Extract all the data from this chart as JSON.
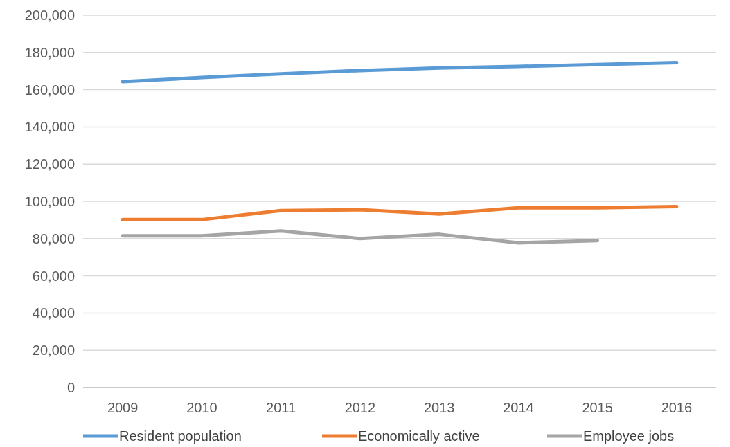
{
  "chart_data": {
    "type": "line",
    "categories": [
      "2009",
      "2010",
      "2011",
      "2012",
      "2013",
      "2014",
      "2015",
      "2016"
    ],
    "series": [
      {
        "name": "Resident population",
        "color": "#5b9bd5",
        "values": [
          164300,
          166500,
          168500,
          170300,
          171700,
          172500,
          173500,
          174500
        ]
      },
      {
        "name": "Economically active",
        "color": "#ed7d31",
        "values": [
          90200,
          90200,
          95100,
          95500,
          93200,
          96600,
          96600,
          97200
        ]
      },
      {
        "name": "Employee jobs",
        "color": "#a5a5a5",
        "values": [
          81500,
          81500,
          84100,
          80000,
          82300,
          77700,
          78900,
          null
        ]
      }
    ],
    "ylim": [
      0,
      200000
    ],
    "yticks": [
      {
        "value": 0,
        "label": "0"
      },
      {
        "value": 20000,
        "label": "20,000"
      },
      {
        "value": 40000,
        "label": "40,000"
      },
      {
        "value": 60000,
        "label": "60,000"
      },
      {
        "value": 80000,
        "label": "80,000"
      },
      {
        "value": 100000,
        "label": "100,000"
      },
      {
        "value": 120000,
        "label": "120,000"
      },
      {
        "value": 140000,
        "label": "140,000"
      },
      {
        "value": 160000,
        "label": "160,000"
      },
      {
        "value": 180000,
        "label": "180,000"
      },
      {
        "value": 200000,
        "label": "200,000"
      }
    ],
    "grid": "y",
    "legend": "bottom",
    "marker": "none",
    "line_style": "solid"
  }
}
